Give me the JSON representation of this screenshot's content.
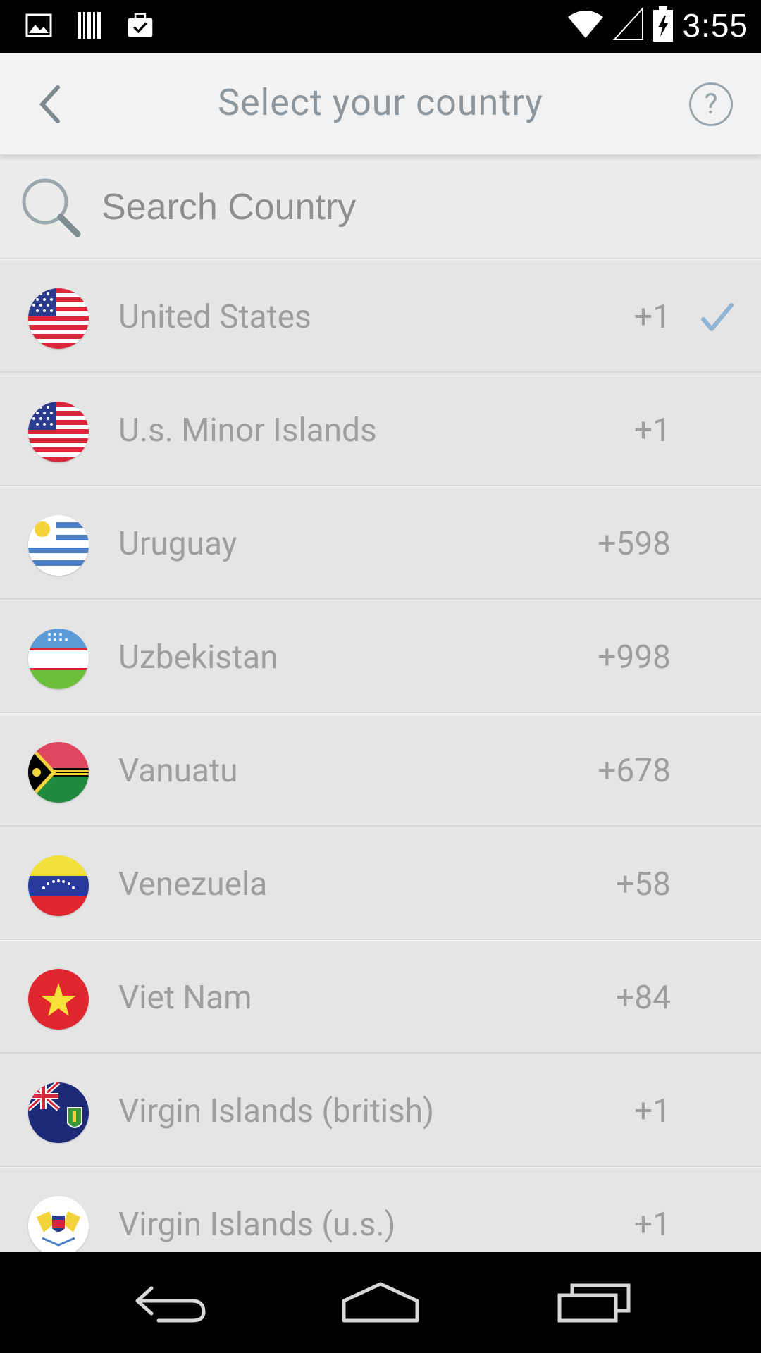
{
  "status_bar": {
    "time": "3:55",
    "left_icons": [
      "image-icon",
      "barcode-icon",
      "briefcase-check-icon"
    ],
    "right_icons": [
      "wifi-icon",
      "cell-signal-icon",
      "battery-charging-icon"
    ]
  },
  "header": {
    "title": "Select your country",
    "help_label": "?"
  },
  "search": {
    "placeholder": "Search Country",
    "value": ""
  },
  "countries": [
    {
      "name": "United States",
      "code": "+1",
      "selected": true,
      "flag": "us"
    },
    {
      "name": "U.s. Minor Islands",
      "code": "+1",
      "selected": false,
      "flag": "us"
    },
    {
      "name": "Uruguay",
      "code": "+598",
      "selected": false,
      "flag": "uy"
    },
    {
      "name": "Uzbekistan",
      "code": "+998",
      "selected": false,
      "flag": "uz"
    },
    {
      "name": "Vanuatu",
      "code": "+678",
      "selected": false,
      "flag": "vu"
    },
    {
      "name": "Venezuela",
      "code": "+58",
      "selected": false,
      "flag": "ve"
    },
    {
      "name": "Viet Nam",
      "code": "+84",
      "selected": false,
      "flag": "vn"
    },
    {
      "name": "Virgin Islands (british)",
      "code": "+1",
      "selected": false,
      "flag": "vg"
    },
    {
      "name": "Virgin Islands (u.s.)",
      "code": "+1",
      "selected": false,
      "flag": "vi"
    }
  ],
  "colors": {
    "accent_check": "#8fb4d4",
    "text": "#9e9e9e",
    "header_bg": "#f2f2f2"
  },
  "nav": {
    "icons": [
      "back-nav-icon",
      "home-nav-icon",
      "recents-nav-icon"
    ]
  }
}
